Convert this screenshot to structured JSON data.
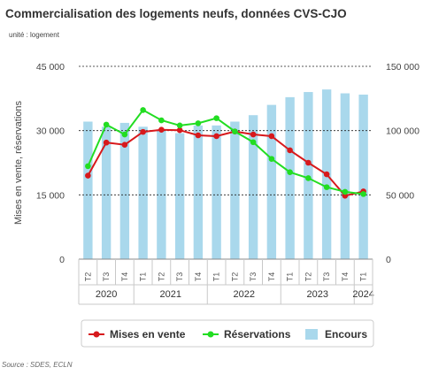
{
  "title": "Commercialisation des logements neufs, données CVS-CJO",
  "subtitle": "unité : logement",
  "source": "Source : SDES, ECLN",
  "colors": {
    "mises": "#d7191c",
    "reservations": "#22dd22",
    "encours": "#a9d8ec"
  },
  "chart_data": {
    "type": "bar+line",
    "ylabel": "Mises en vente, réservations",
    "y_left": {
      "min": 0,
      "max": 45000,
      "ticks": [
        "0",
        "15 000",
        "30 000",
        "45 000"
      ]
    },
    "y_right": {
      "min": 0,
      "max": 150000,
      "ticks": [
        "0",
        "50 000",
        "100 000",
        "150 000"
      ]
    },
    "quarters": [
      "T2",
      "T3",
      "T4",
      "T1",
      "T2",
      "T3",
      "T4",
      "T1",
      "T2",
      "T3",
      "T4",
      "T1",
      "T2",
      "T3",
      "T4",
      "T1"
    ],
    "years": [
      {
        "label": "2020",
        "span": 3
      },
      {
        "label": "2021",
        "span": 4
      },
      {
        "label": "2022",
        "span": 4
      },
      {
        "label": "2023",
        "span": 4
      },
      {
        "label": "2024",
        "span": 1
      }
    ],
    "series": [
      {
        "name": "Mises en vente",
        "type": "line",
        "axis": "left",
        "values": [
          19500,
          27200,
          26700,
          29700,
          30200,
          30100,
          28900,
          28700,
          29800,
          29100,
          28700,
          25400,
          22500,
          19800,
          14800,
          15800
        ]
      },
      {
        "name": "Réservations",
        "type": "line",
        "axis": "left",
        "values": [
          21700,
          31400,
          29100,
          34800,
          32400,
          31200,
          31700,
          32900,
          29800,
          27300,
          23400,
          20300,
          18900,
          16800,
          15700,
          15200
        ]
      },
      {
        "name": "Encours",
        "type": "bar",
        "axis": "right",
        "values": [
          107000,
          103000,
          106000,
          103000,
          100000,
          98000,
          104000,
          104000,
          107000,
          112000,
          120000,
          126000,
          130000,
          132000,
          129000,
          128000
        ]
      }
    ],
    "legend": [
      "Mises en vente",
      "Réservations",
      "Encours"
    ],
    "legend_position": "bottom",
    "grid": true
  }
}
